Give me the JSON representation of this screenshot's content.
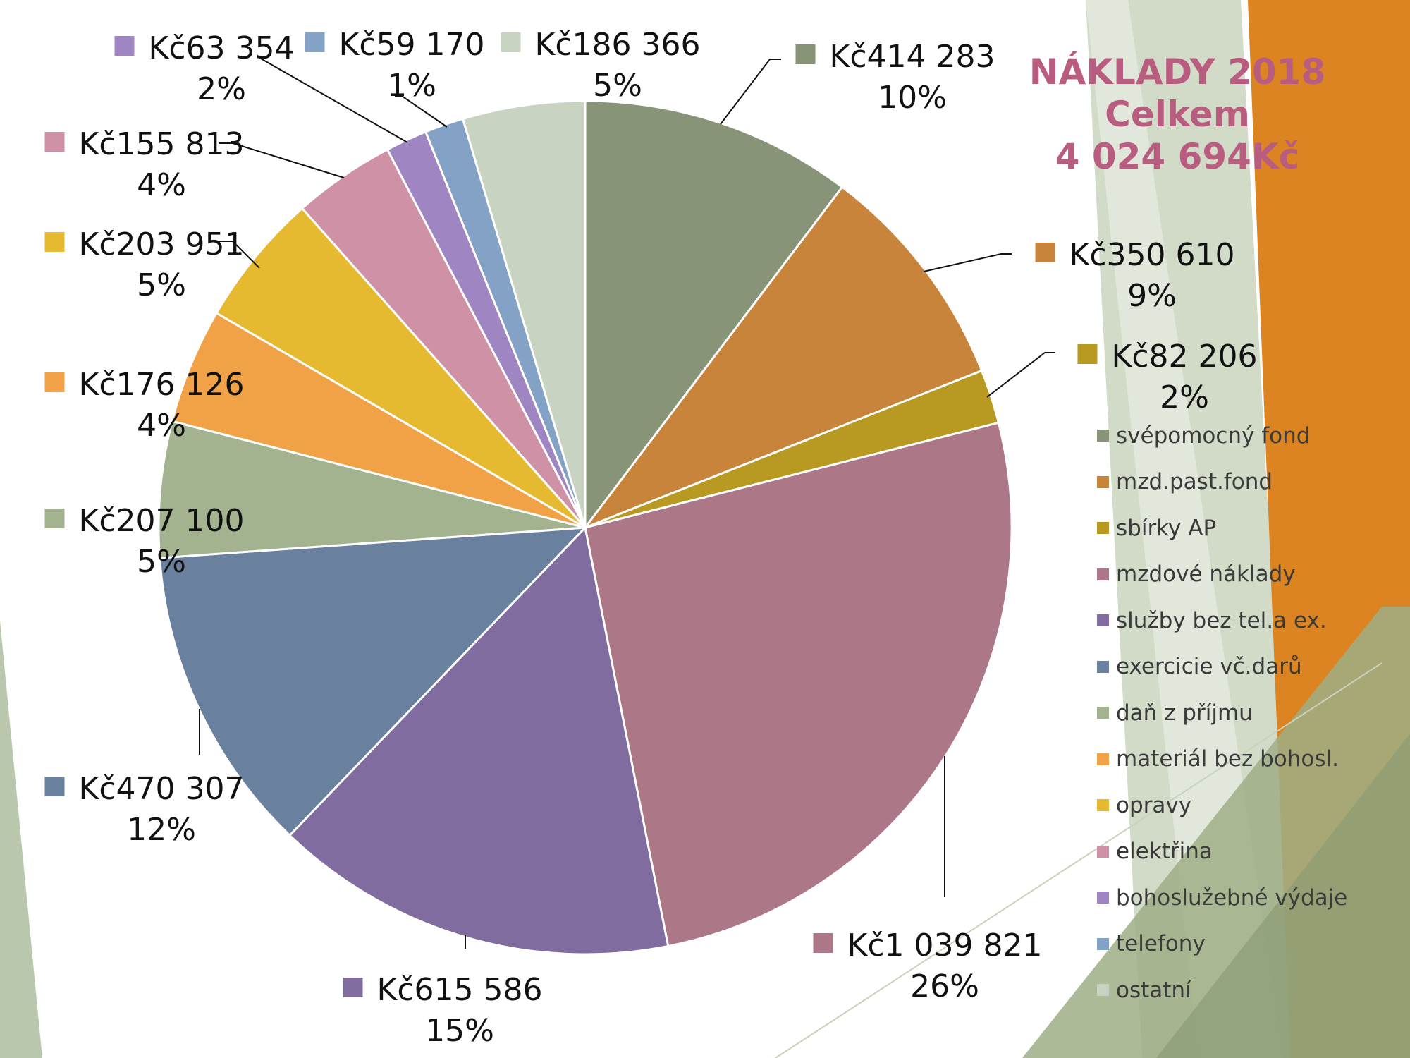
{
  "title": {
    "line1": "NÁKLADY 2018",
    "line2": "Celkem",
    "line3": "4 024 694Kč"
  },
  "colors": {
    "title": "#b95d80",
    "background_accent_orange": "#dc8421",
    "background_accent_green": "#b9c8ad"
  },
  "chart_data": {
    "type": "pie",
    "start_angle_deg": 0,
    "direction": "clockwise",
    "legend_position": "right",
    "slices": [
      {
        "name": "svépomocný fond",
        "value": 414283,
        "value_label": "Kč414 283",
        "percent_label": "10%",
        "color": "#879478"
      },
      {
        "name": "mzd.past.fond",
        "value": 350610,
        "value_label": "Kč350 610",
        "percent_label": "9%",
        "color": "#c8843a"
      },
      {
        "name": "sbírky AP",
        "value": 82206,
        "value_label": "Kč82 206",
        "percent_label": "2%",
        "color": "#b89a22"
      },
      {
        "name": "mzdové náklady",
        "value": 1039821,
        "value_label": "Kč1 039 821",
        "percent_label": "26%",
        "color": "#ac7887"
      },
      {
        "name": "služby bez tel.a ex.",
        "value": 615586,
        "value_label": "Kč615 586",
        "percent_label": "15%",
        "color": "#806c9f"
      },
      {
        "name": "exercicie vč.darů",
        "value": 470307,
        "value_label": "Kč470 307",
        "percent_label": "12%",
        "color": "#69819e"
      },
      {
        "name": "daň z příjmu",
        "value": 207100,
        "value_label": "Kč207 100",
        "percent_label": "5%",
        "color": "#a4b38f"
      },
      {
        "name": "materiál bez bohosl.",
        "value": 176126,
        "value_label": "Kč176 126",
        "percent_label": "4%",
        "color": "#f1a246"
      },
      {
        "name": "opravy",
        "value": 203951,
        "value_label": "Kč203 951",
        "percent_label": "5%",
        "color": "#e5b930"
      },
      {
        "name": "elektřina",
        "value": 155813,
        "value_label": "Kč155 813",
        "percent_label": "4%",
        "color": "#ce91a6"
      },
      {
        "name": "bohoslužebné výdaje",
        "value": 63354,
        "value_label": "Kč63 354",
        "percent_label": "2%",
        "color": "#9f86c2"
      },
      {
        "name": "telefony",
        "value": 59170,
        "value_label": "Kč59 170",
        "percent_label": "1%",
        "color": "#84a1c6"
      },
      {
        "name": "ostatní",
        "value": 186366,
        "value_label": "Kč186 366",
        "percent_label": "5%",
        "color": "#c9d3c1"
      }
    ]
  }
}
